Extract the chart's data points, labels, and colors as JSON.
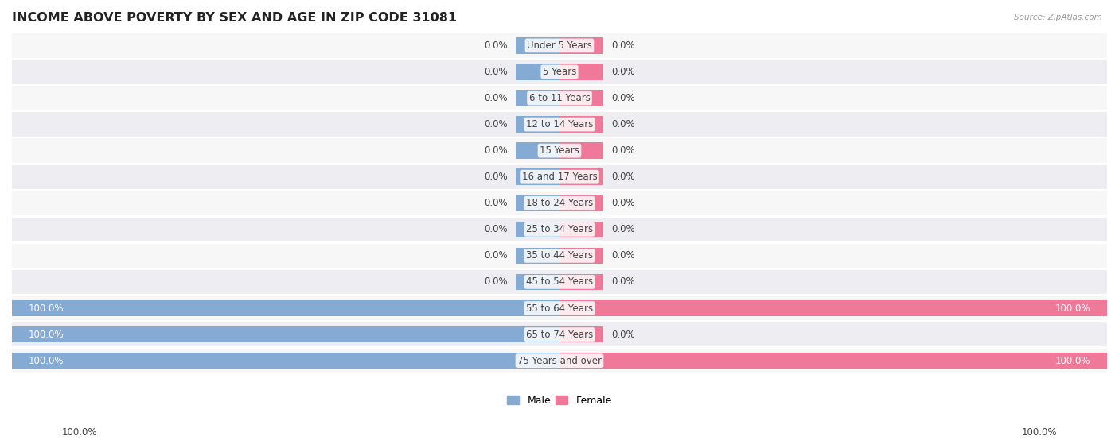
{
  "title": "INCOME ABOVE POVERTY BY SEX AND AGE IN ZIP CODE 31081",
  "source": "Source: ZipAtlas.com",
  "categories": [
    "Under 5 Years",
    "5 Years",
    "6 to 11 Years",
    "12 to 14 Years",
    "15 Years",
    "16 and 17 Years",
    "18 to 24 Years",
    "25 to 34 Years",
    "35 to 44 Years",
    "45 to 54 Years",
    "55 to 64 Years",
    "65 to 74 Years",
    "75 Years and over"
  ],
  "male_values": [
    0.0,
    0.0,
    0.0,
    0.0,
    0.0,
    0.0,
    0.0,
    0.0,
    0.0,
    0.0,
    100.0,
    100.0,
    100.0
  ],
  "female_values": [
    0.0,
    0.0,
    0.0,
    0.0,
    0.0,
    0.0,
    0.0,
    0.0,
    0.0,
    0.0,
    100.0,
    0.0,
    100.0
  ],
  "male_color": "#85AAD4",
  "female_color": "#F07898",
  "male_label": "Male",
  "female_label": "Female",
  "bar_height": 0.62,
  "row_bg_light": "#f0f0f0",
  "row_bg_dark": "#e0e0e8",
  "label_color": "#444444",
  "title_color": "#222222",
  "title_fontsize": 11.5,
  "label_fontsize": 8.5,
  "annotation_fontsize": 8.5,
  "x_max": 100.0,
  "x_min": -100.0,
  "zero_bar_extent": 8.0
}
